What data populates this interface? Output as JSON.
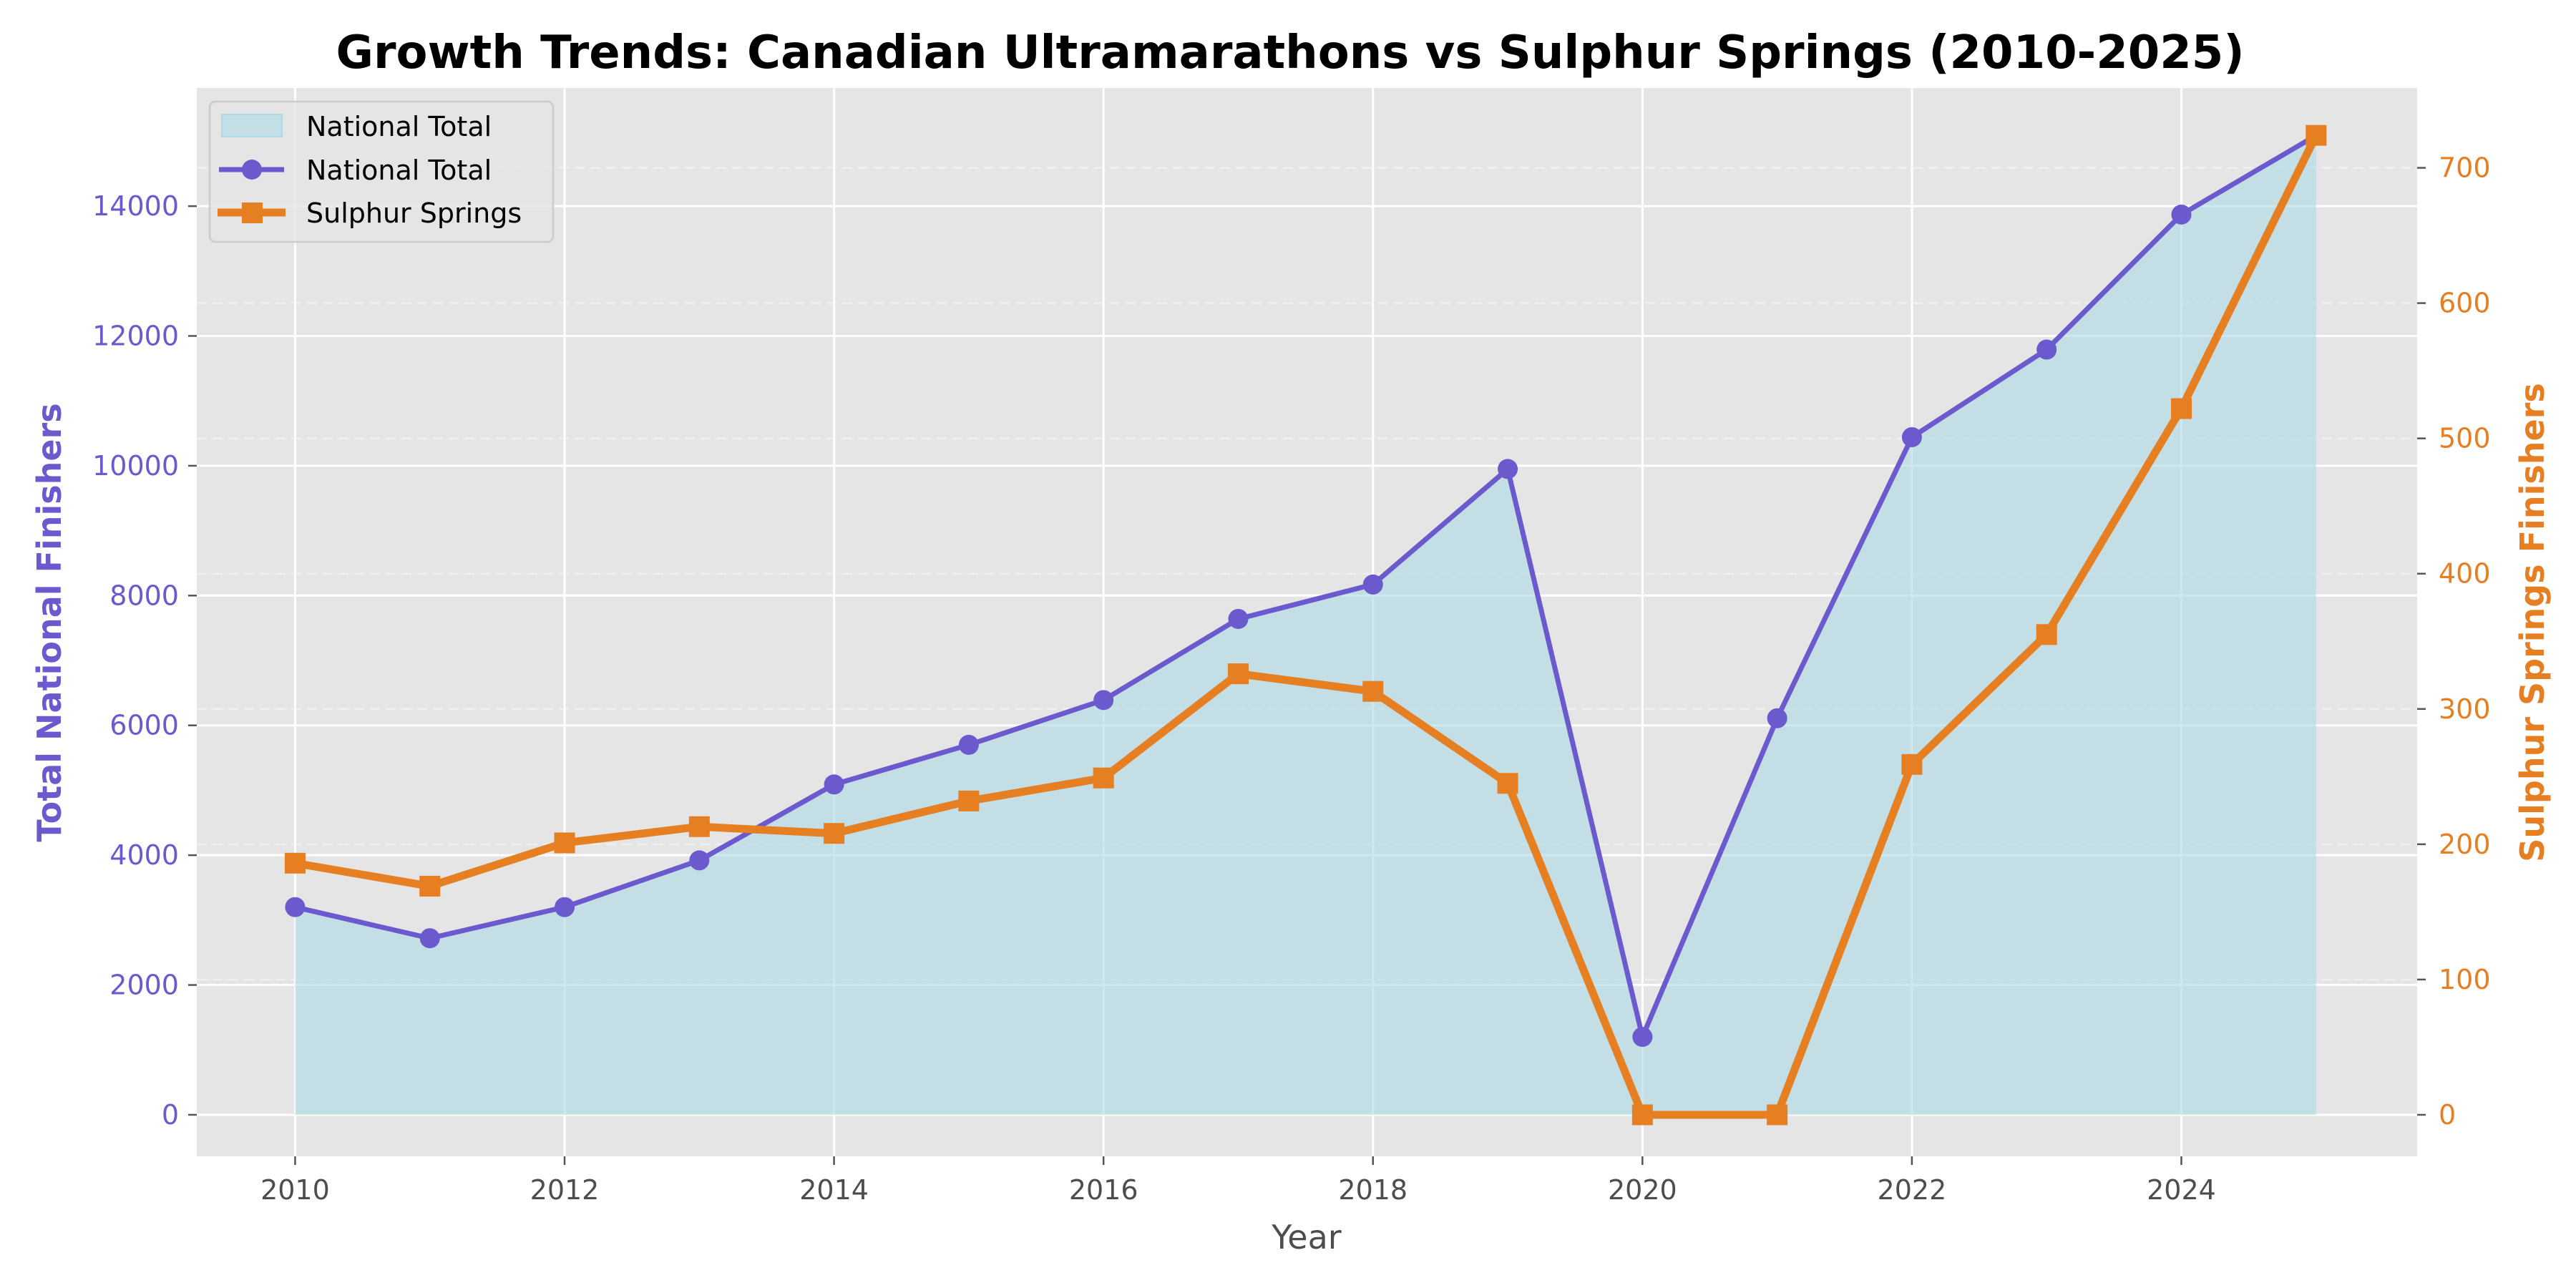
{
  "chart_data": {
    "type": "line",
    "title": "Growth Trends: Canadian Ultramarathons vs Sulphur Springs (2010-2025)",
    "xlabel": "Year",
    "ylabel_left": "Total National Finishers",
    "ylabel_right": "Sulphur Springs Finishers",
    "x": [
      2010,
      2011,
      2012,
      2013,
      2014,
      2015,
      2016,
      2017,
      2018,
      2019,
      2020,
      2021,
      2022,
      2023,
      2024,
      2025
    ],
    "x_ticks": [
      "2010",
      "2012",
      "2014",
      "2016",
      "2018",
      "2020",
      "2022",
      "2024"
    ],
    "x_tick_values": [
      2010,
      2012,
      2014,
      2016,
      2018,
      2020,
      2022,
      2024
    ],
    "xlim": [
      2009.27,
      2025.75
    ],
    "y_left_ticks": [
      "0",
      "2000",
      "4000",
      "6000",
      "8000",
      "10000",
      "12000",
      "14000"
    ],
    "y_left_tick_values": [
      0,
      2000,
      4000,
      6000,
      8000,
      10000,
      12000,
      14000
    ],
    "ylim_left": [
      -640,
      15820
    ],
    "y_right_ticks": [
      "0",
      "100",
      "200",
      "300",
      "400",
      "500",
      "600",
      "700"
    ],
    "y_right_tick_values": [
      0,
      100,
      200,
      300,
      400,
      500,
      600,
      700
    ],
    "ylim_right": [
      -30.7,
      759
    ],
    "grid": true,
    "legend_position": "top-left",
    "series": [
      {
        "name": "National Total",
        "kind": "area",
        "axis": "left",
        "color": "#add8e6",
        "values": [
          3200,
          2720,
          3200,
          3920,
          5090,
          5700,
          6390,
          7640,
          8170,
          9950,
          1200,
          6110,
          10440,
          11790,
          13870,
          15090
        ]
      },
      {
        "name": "National Total",
        "kind": "line",
        "marker": "circle",
        "axis": "left",
        "color": "#6a5acd",
        "values": [
          3200,
          2720,
          3200,
          3920,
          5090,
          5700,
          6390,
          7640,
          8170,
          9950,
          1200,
          6110,
          10440,
          11790,
          13870,
          15090
        ]
      },
      {
        "name": "Sulphur Springs",
        "kind": "line",
        "marker": "square",
        "axis": "right",
        "color": "#e67e22",
        "values": [
          186,
          169,
          201,
          213,
          208,
          232,
          249,
          326,
          313,
          245,
          0,
          0,
          259,
          355,
          522,
          724
        ]
      }
    ],
    "legend": [
      "National Total",
      "National Total",
      "Sulphur Springs"
    ]
  },
  "colors": {
    "plot_background": "#e5e5e5",
    "grid": "#ffffff",
    "left_axis": "#6a5acd",
    "right_axis": "#e67e22",
    "area_fill": "#add8e6"
  }
}
